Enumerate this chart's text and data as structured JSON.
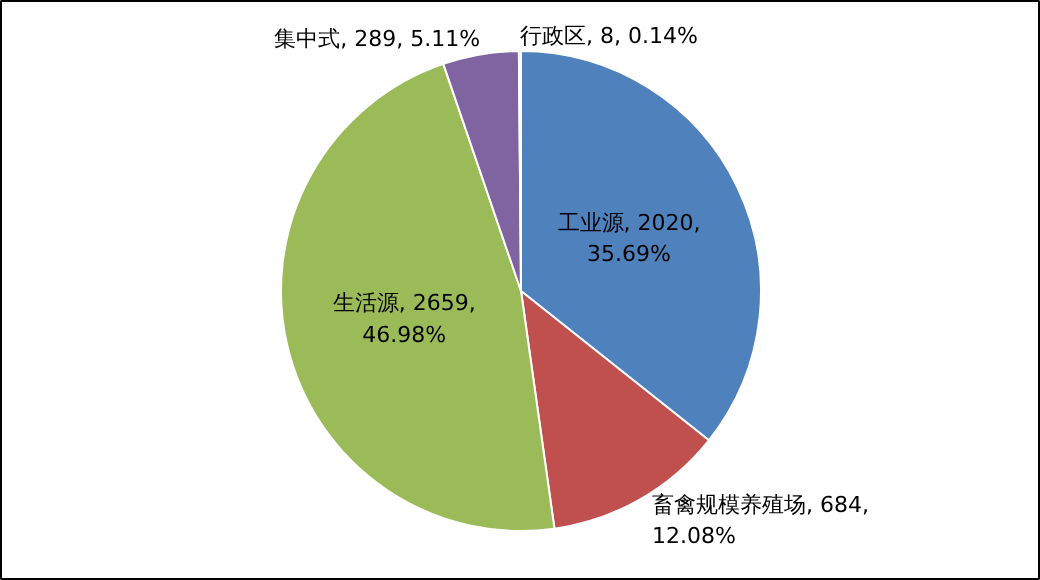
{
  "chart_data": {
    "type": "pie",
    "categories": [
      "工业源",
      "畜禽规模养殖场",
      "生活源",
      "集中式",
      "行政区"
    ],
    "values": [
      2020,
      684,
      2659,
      289,
      8
    ],
    "colors": [
      "#4f81bd",
      "#c0504d",
      "#9bbb59",
      "#8064a2",
      "#4bacc6"
    ],
    "value_labels": [
      "2020, 35.69%",
      "684, 12.08%",
      "2659, 46.98%",
      "289, 5.11%",
      "8, 0.14%"
    ],
    "legend": false
  }
}
